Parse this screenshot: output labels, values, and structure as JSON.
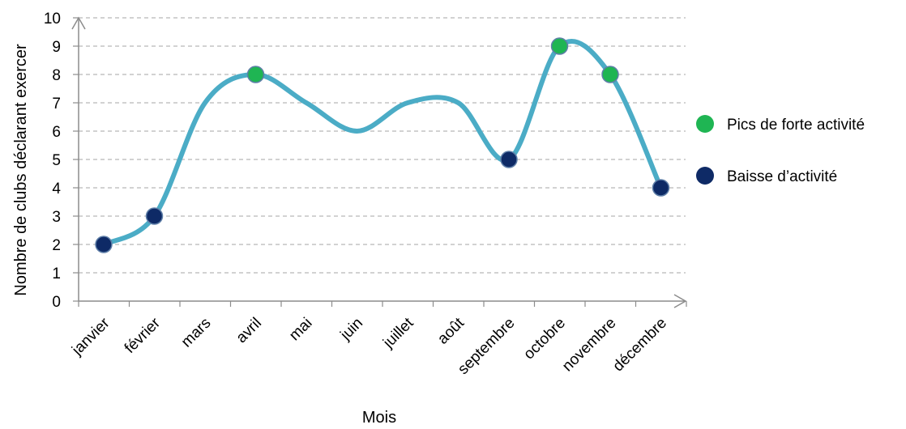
{
  "chart_data": {
    "type": "line",
    "title": "",
    "xlabel": "Mois",
    "ylabel": "Nombre de clubs déclarant exercer",
    "categories": [
      "janvier",
      "février",
      "mars",
      "avril",
      "mai",
      "juin",
      "juillet",
      "août",
      "septembre",
      "octobre",
      "novembre",
      "décembre"
    ],
    "series": [
      {
        "values": [
          2,
          3,
          7,
          8,
          7,
          6,
          7,
          7,
          5,
          9,
          8,
          4
        ]
      }
    ],
    "y_ticks": [
      0,
      1,
      2,
      3,
      4,
      5,
      6,
      7,
      8,
      9,
      10
    ],
    "ylim": [
      0,
      10
    ],
    "grid": "horizontal dashed",
    "smooth": true,
    "line_color": "#4bacc6",
    "markers": [
      {
        "category": "janvier",
        "value": 2,
        "group": "low"
      },
      {
        "category": "février",
        "value": 3,
        "group": "low"
      },
      {
        "category": "avril",
        "value": 8,
        "group": "peak"
      },
      {
        "category": "septembre",
        "value": 5,
        "group": "low"
      },
      {
        "category": "octobre",
        "value": 9,
        "group": "peak"
      },
      {
        "category": "novembre",
        "value": 8,
        "group": "peak"
      },
      {
        "category": "décembre",
        "value": 4,
        "group": "low"
      }
    ],
    "legend": {
      "placement": "right",
      "items": [
        {
          "key": "peak",
          "label": "Pics de forte activité",
          "color": "#1fb553"
        },
        {
          "key": "low",
          "label": "Baisse d’activité",
          "color": "#0e2a66"
        }
      ]
    }
  }
}
